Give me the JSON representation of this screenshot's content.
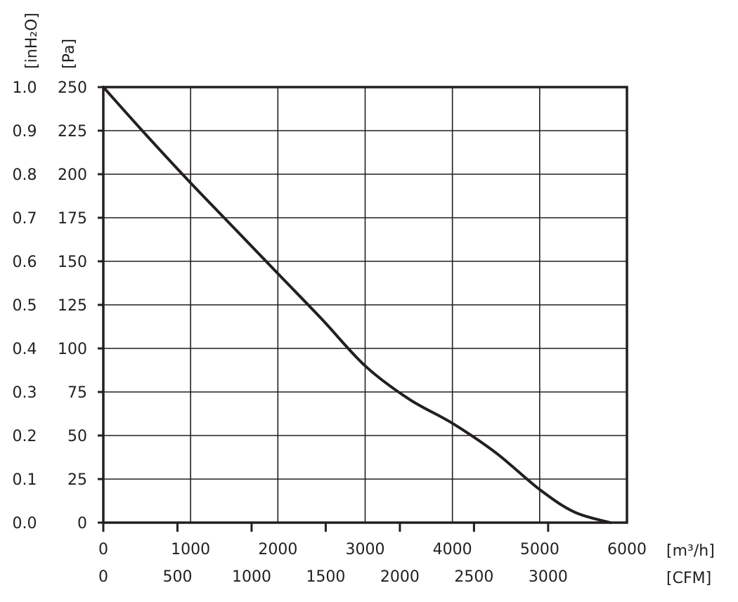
{
  "chart_data": {
    "type": "line",
    "title": "",
    "y_units": {
      "inh2o": "[inH₂O]",
      "pa": "[Pa]"
    },
    "x_units": {
      "m3h": "[m³/h]",
      "cfm": "[CFM]"
    },
    "y_ticks_pa": [
      "0",
      "25",
      "50",
      "75",
      "100",
      "125",
      "150",
      "175",
      "200",
      "225",
      "250"
    ],
    "y_ticks_inh2o": [
      "0.0",
      "0.1",
      "0.2",
      "0.3",
      "0.4",
      "0.5",
      "0.6",
      "0.7",
      "0.8",
      "0.9",
      "1.0"
    ],
    "x_ticks_m3h": [
      "0",
      "1000",
      "2000",
      "3000",
      "4000",
      "5000",
      "6000"
    ],
    "x_ticks_cfm": [
      "0",
      "500",
      "1000",
      "1500",
      "2000",
      "2500",
      "3000"
    ],
    "xlim_m3h": [
      0,
      6000
    ],
    "ylim_pa": [
      0,
      250
    ],
    "grid": true,
    "series": [
      {
        "x": [
          0,
          500,
          1000,
          1500,
          2000,
          2500,
          3000,
          3500,
          4000,
          4500,
          5000,
          5400,
          5810
        ],
        "y": [
          250,
          222,
          195,
          169,
          143,
          117,
          90,
          71,
          57,
          40,
          19,
          6,
          0
        ]
      }
    ]
  }
}
